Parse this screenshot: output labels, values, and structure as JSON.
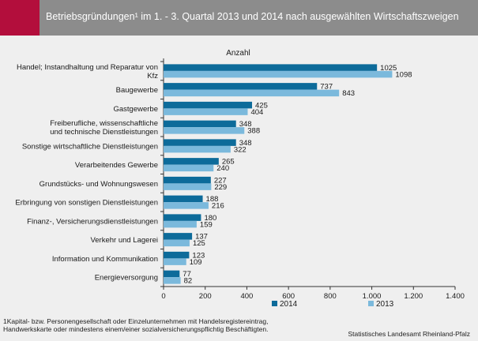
{
  "header": {
    "title": "Betriebsgründungen¹ im 1. - 3. Quartal 2013 und 2014  nach ausgewählten Wirtschaftszweigen",
    "accent_color": "#b30e3c",
    "background_color": "#8c8c8c"
  },
  "chart_data": {
    "type": "bar",
    "orientation": "horizontal",
    "title": "",
    "xlabel": "Anzahl",
    "ylabel": "",
    "xlim": [
      0,
      1400
    ],
    "xticks": [
      "0",
      "200",
      "400",
      "600",
      "800",
      "1.000",
      "1.200",
      "1.400"
    ],
    "xtick_values": [
      0,
      200,
      400,
      600,
      800,
      1000,
      1200,
      1400
    ],
    "grid": false,
    "legend_position": "bottom",
    "categories": [
      "Handel; Instandhaltung und Reparatur von\nKfz",
      "Baugewerbe",
      "Gastgewerbe",
      "Freiberufliche, wissenschaftliche\nund technische Dienstleistungen",
      "Sonstige wirtschaftliche Dienstleistungen",
      "Verarbeitendes Gewerbe",
      "Grundstücks- und Wohnungswesen",
      "Erbringung von sonstigen Dienstleistungen",
      "Finanz-, Versicherungsdienstleistungen",
      "Verkehr und Lagerei",
      "Information und Kommunikation",
      "Energieversorgung"
    ],
    "series": [
      {
        "name": "2014",
        "color": "#0d6b9a",
        "values": [
          1025,
          737,
          425,
          348,
          348,
          265,
          227,
          188,
          180,
          137,
          123,
          77
        ]
      },
      {
        "name": "2013",
        "color": "#7bb9dc",
        "values": [
          1098,
          843,
          404,
          388,
          322,
          240,
          229,
          216,
          159,
          125,
          109,
          82
        ]
      }
    ]
  },
  "footnote": "1Kapital- bzw. Personengesellschaft oder Einzelunternehmen mit Handelsregistereintrag,\nHandwerkskarte oder mindestens einem/einer sozialversicherungspflichtig Beschäftigten.",
  "source": "Statistisches Landesamt Rheinland-Pfalz"
}
